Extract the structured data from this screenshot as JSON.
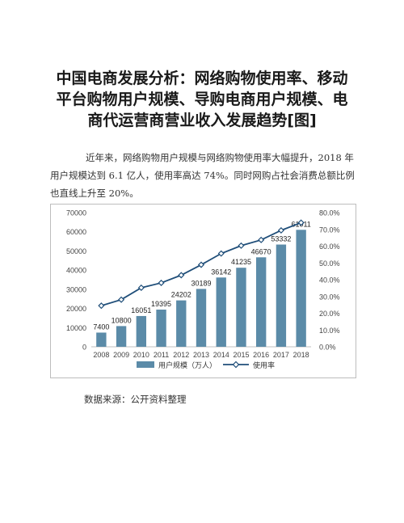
{
  "article": {
    "title_lines": [
      "中国电商发展分析：网络购物使用率、移动",
      "平台购物用户规模、导购电商用户规模、电",
      "商代运营商营业收入发展趋势[图]"
    ],
    "paragraph": "近年来，网络购物用户规模与网络购物使用率大幅提升，2018 年用户规模达到 6.1 亿人，使用率高达 74%。同时网购占社会消费总额比例也直线上升至 20%。",
    "source": "数据来源：公开资料整理"
  },
  "chart_data": {
    "type": "bar",
    "categories": [
      "2008",
      "2009",
      "2010",
      "2011",
      "2012",
      "2013",
      "2014",
      "2015",
      "2016",
      "2017",
      "2018"
    ],
    "series": [
      {
        "name": "用户规模（万人）",
        "kind": "bar",
        "axis": "left",
        "values": [
          7400,
          10800,
          16051,
          19395,
          24202,
          30189,
          36142,
          41235,
          46670,
          53332,
          61011
        ],
        "labels": [
          "7400",
          "10800",
          "16051",
          "19395",
          "24202",
          "30189",
          "36142",
          "41235",
          "46670",
          "53332",
          "61011"
        ],
        "color": "#5b8ba8"
      },
      {
        "name": "使用率",
        "kind": "line",
        "axis": "right",
        "values": [
          0.245,
          0.281,
          0.352,
          0.381,
          0.427,
          0.489,
          0.556,
          0.603,
          0.637,
          0.694,
          0.74
        ],
        "color": "#1f4e79"
      }
    ],
    "ylim": [
      0,
      70000
    ],
    "y_ticks": [
      "0",
      "10000",
      "20000",
      "30000",
      "40000",
      "50000",
      "60000",
      "70000"
    ],
    "y2lim": [
      0,
      0.8
    ],
    "y2_ticks": [
      "0.0%",
      "10.0%",
      "20.0%",
      "30.0%",
      "40.0%",
      "50.0%",
      "60.0%",
      "70.0%",
      "80.0%"
    ],
    "grid": false,
    "legend": "bottom"
  }
}
